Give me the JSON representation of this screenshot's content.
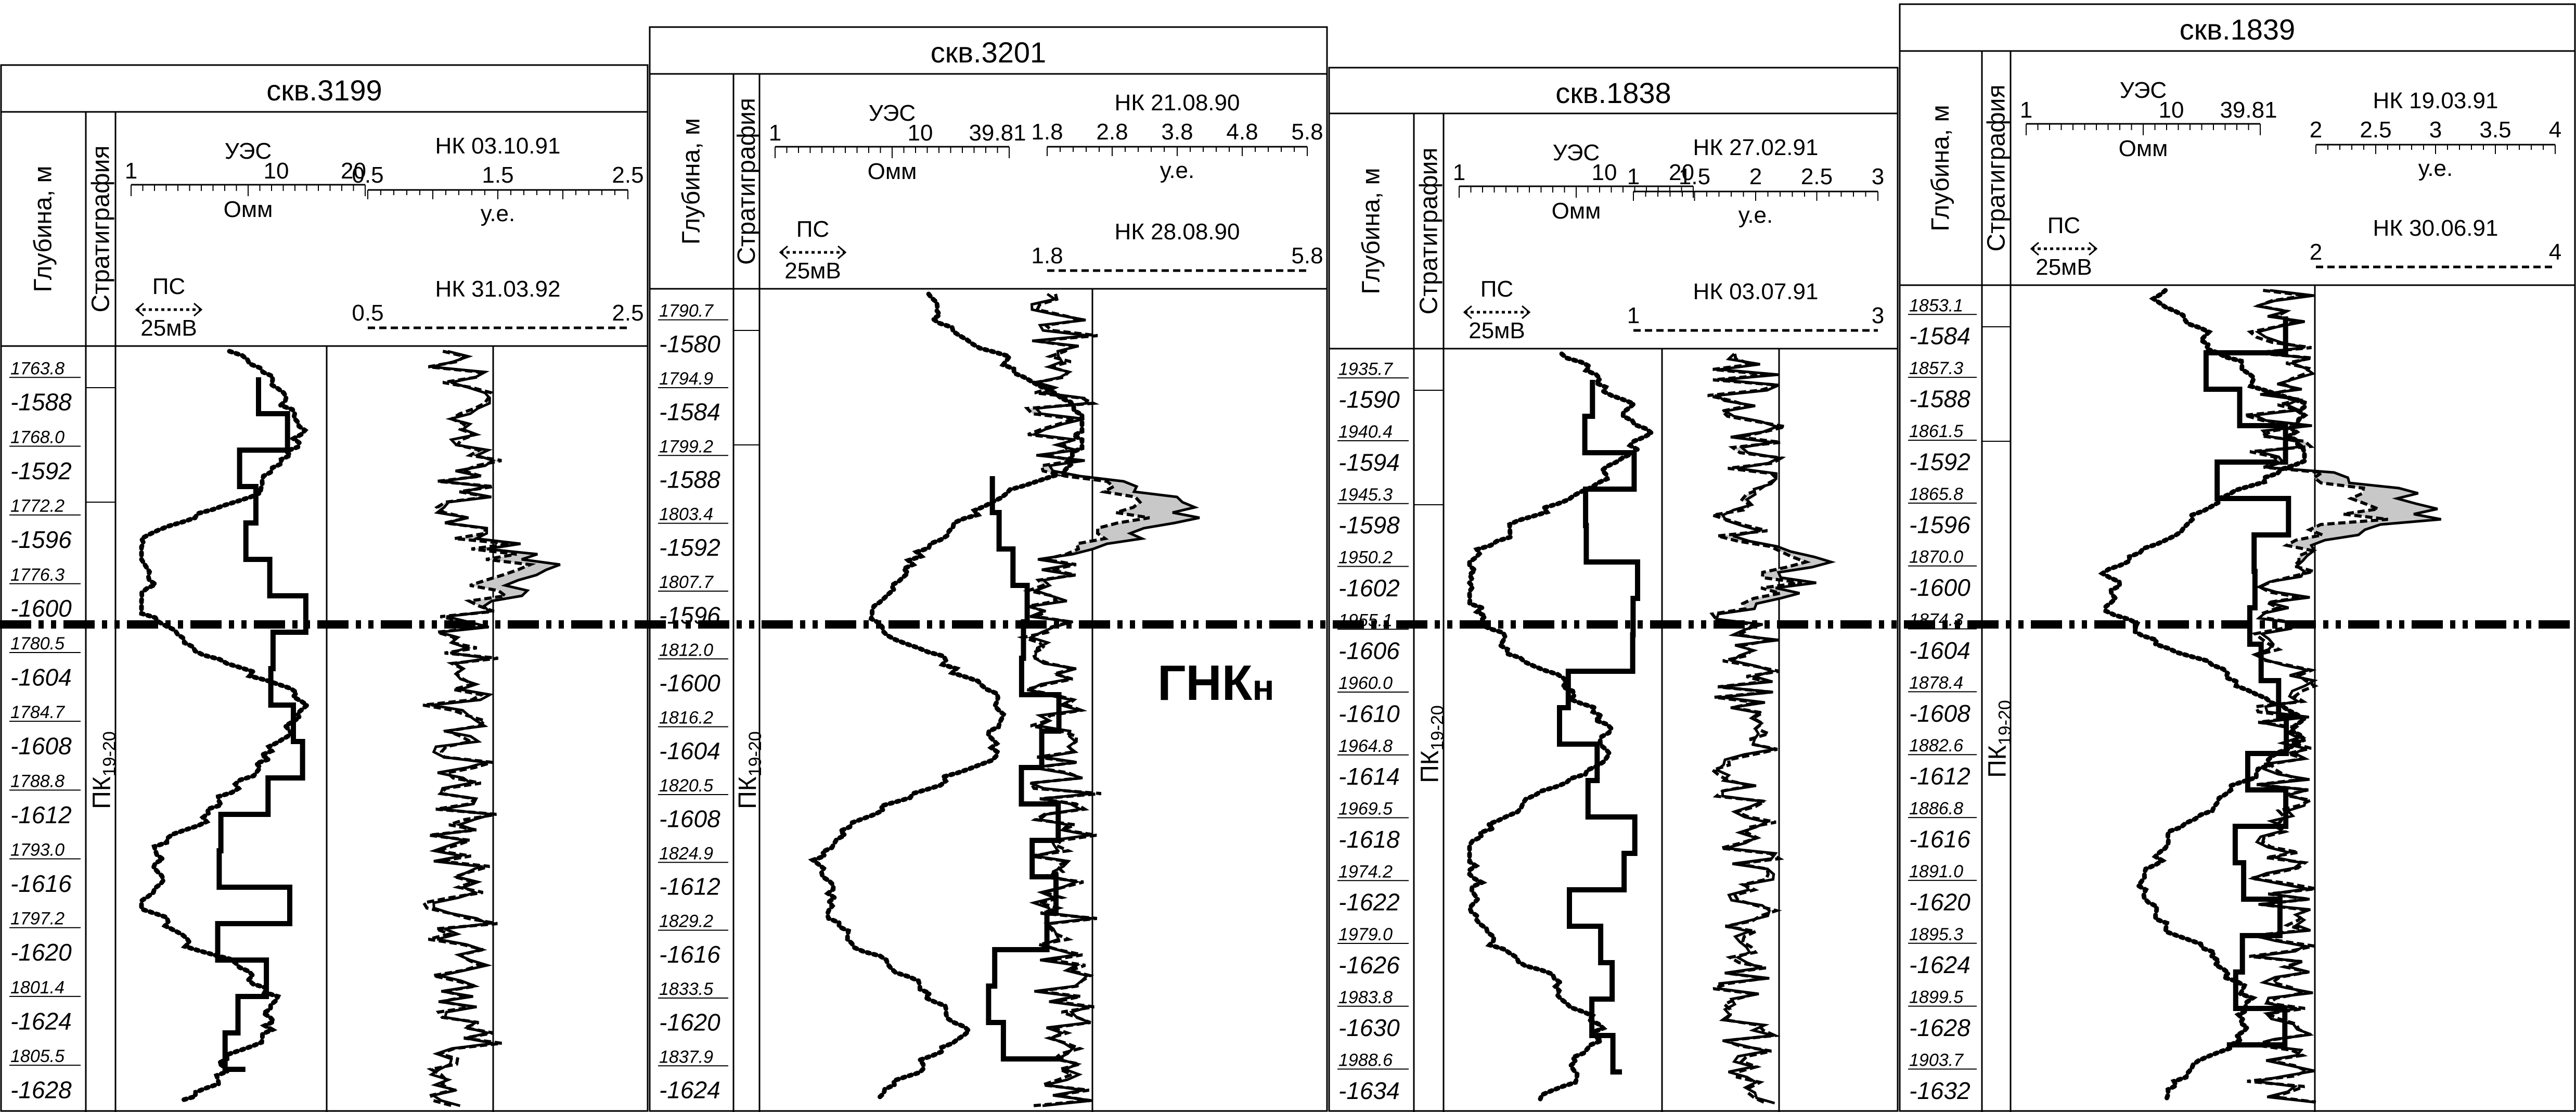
{
  "strat_label": "ПК",
  "strat_sub": "19-20",
  "depth_header": "Глубина, м",
  "strat_header": "Стратиграфия",
  "ps_label": "ПС",
  "ps_scale": "25мВ",
  "ues_label": "УЭС",
  "omm_label": "Омм",
  "ue_label": "у.е.",
  "gnk_label": "ГНК",
  "gnk_sub": "н",
  "colors": {
    "line": "#000000",
    "shade": "#c8c8c8",
    "background": "#ffffff"
  },
  "wells": [
    {
      "name": "скв.3199",
      "ues_scale": [
        "1",
        "10",
        "20"
      ],
      "nk1": {
        "label": "НК 03.10.91",
        "ticks": [
          "0.5",
          "1.5",
          "2.5"
        ]
      },
      "nk2": {
        "label": "НК 31.03.92",
        "ticks": [
          "0.5",
          "2.5"
        ]
      },
      "depths": [
        "1763.8",
        "1768.0",
        "1772.2",
        "1776.3",
        "1780.5",
        "1784.7",
        "1788.8",
        "1793.0",
        "1797.2",
        "1801.4",
        "1805.5"
      ],
      "abs_depths": [
        "-1588",
        "-1592",
        "-1596",
        "-1600",
        "-1604",
        "-1608",
        "-1612",
        "-1616",
        "-1620",
        "-1624",
        "-1628"
      ]
    },
    {
      "name": "скв.3201",
      "ues_scale": [
        "1",
        "10",
        "39.81"
      ],
      "nk1": {
        "label": "НК 21.08.90",
        "ticks": [
          "1.8",
          "2.8",
          "3.8",
          "4.8",
          "5.8"
        ]
      },
      "nk2": {
        "label": "НК 28.08.90",
        "ticks": [
          "1.8",
          "5.8"
        ]
      },
      "depths": [
        "1790.7",
        "1794.9",
        "1799.2",
        "1803.4",
        "1807.7",
        "1812.0",
        "1816.2",
        "1820.5",
        "1824.9",
        "1829.2",
        "1833.5",
        "1837.9"
      ],
      "abs_depths": [
        "-1580",
        "-1584",
        "-1588",
        "-1592",
        "-1596",
        "-1600",
        "-1604",
        "-1608",
        "-1612",
        "-1616",
        "-1620",
        "-1624"
      ]
    },
    {
      "name": "скв.1838",
      "ues_scale": [
        "1",
        "10",
        "20"
      ],
      "nk1": {
        "label": "НК 27.02.91",
        "ticks": [
          "1",
          "1.5",
          "2",
          "2.5",
          "3"
        ]
      },
      "nk2": {
        "label": "НК 03.07.91",
        "ticks": [
          "1",
          "3"
        ]
      },
      "depths": [
        "1935.7",
        "1940.4",
        "1945.3",
        "1950.2",
        "1955.1",
        "1960.0",
        "1964.8",
        "1969.5",
        "1974.2",
        "1979.0",
        "1983.8",
        "1988.6"
      ],
      "abs_depths": [
        "-1590",
        "-1594",
        "-1598",
        "-1602",
        "-1606",
        "-1610",
        "-1614",
        "-1618",
        "-1622",
        "-1626",
        "-1630",
        "-1634"
      ]
    },
    {
      "name": "скв.1839",
      "ues_scale": [
        "1",
        "10",
        "39.81"
      ],
      "nk1": {
        "label": "НК 19.03.91",
        "ticks": [
          "2",
          "2.5",
          "3",
          "3.5",
          "4"
        ]
      },
      "nk2": {
        "label": "НК 30.06.91",
        "ticks": [
          "2",
          "4"
        ]
      },
      "depths": [
        "1853.1",
        "1857.3",
        "1861.5",
        "1865.8",
        "1870.0",
        "1874.3",
        "1878.4",
        "1882.6",
        "1886.8",
        "1891.0",
        "1895.3",
        "1899.5",
        "1903.7"
      ],
      "abs_depths": [
        "-1584",
        "-1588",
        "-1592",
        "-1596",
        "-1600",
        "-1604",
        "-1608",
        "-1612",
        "-1616",
        "-1620",
        "-1624",
        "-1628",
        "-1632"
      ]
    }
  ]
}
